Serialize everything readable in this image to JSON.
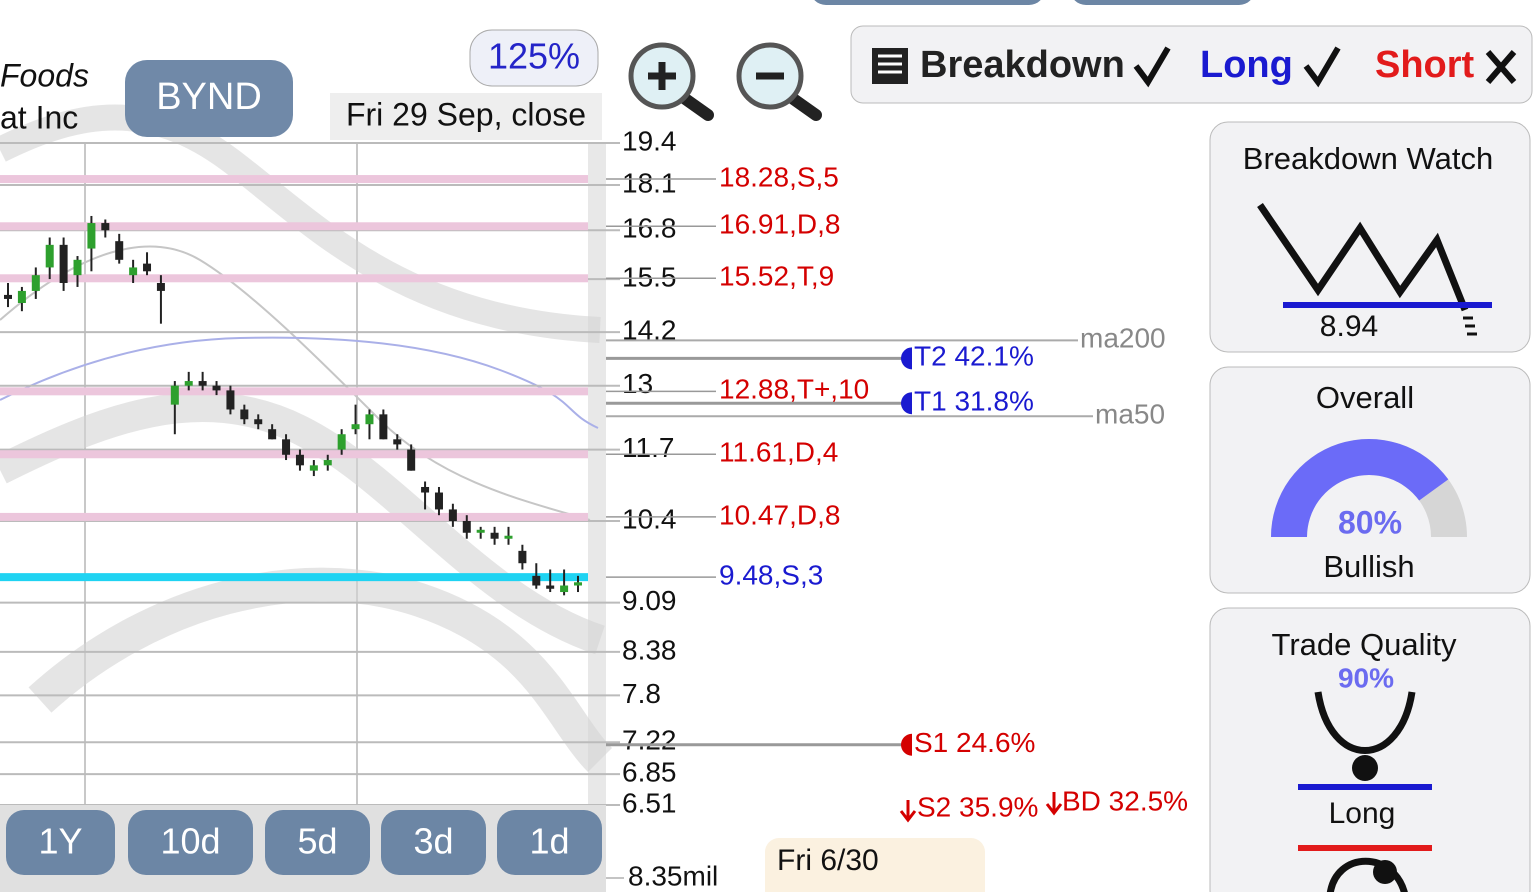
{
  "header": {
    "name_line1": "Foods",
    "name_line2": "at Inc",
    "ticker": "BYND",
    "zoom": "125%",
    "date": "Fri 29 Sep, close"
  },
  "toolbar": {
    "breakdown": "Breakdown",
    "long": "Long",
    "short": "Short"
  },
  "chart_data": {
    "type": "candlestick",
    "log": true,
    "ylim": [
      6.51,
      19.4
    ],
    "yticks": [
      19.4,
      18.1,
      16.8,
      15.5,
      14.2,
      13,
      11.7,
      10.4,
      9.09,
      8.38,
      7.8,
      7.22,
      6.85,
      6.51
    ],
    "levels": [
      {
        "value": 18.28,
        "label": "18.28,S,5",
        "color": "#d40000",
        "band": "#ecc6dc"
      },
      {
        "value": 16.91,
        "label": "16.91,D,8",
        "color": "#d40000",
        "band": "#ecc6dc"
      },
      {
        "value": 15.52,
        "label": "15.52,T,9",
        "color": "#d40000",
        "band": "#ecc6dc"
      },
      {
        "value": 12.88,
        "label": "12.88,T+,10",
        "color": "#d40000",
        "band": "#ecc6dc"
      },
      {
        "value": 11.61,
        "label": "11.61,D,4",
        "color": "#d40000",
        "band": "#ecc6dc"
      },
      {
        "value": 10.47,
        "label": "10.47,D,8",
        "color": "#d40000",
        "band": "#ecc6dc"
      },
      {
        "value": 9.48,
        "label": "9.48,S,3",
        "color": "#1a1ad0",
        "band": "#1fd3f2"
      }
    ],
    "targets": [
      {
        "value": 13.6,
        "label": "T2 42.1%",
        "color": "#1a1ad0"
      },
      {
        "value": 12.63,
        "label": "T1 31.8%",
        "color": "#1a1ad0"
      },
      {
        "value": 7.19,
        "label": "S1 24.6%",
        "color": "#d40000"
      }
    ],
    "averages": [
      {
        "value": 14.01,
        "label": "ma200",
        "end": 1078
      },
      {
        "value": 12.36,
        "label": "ma50",
        "end": 1093
      }
    ],
    "ohlc": [
      [
        15.1,
        15.4,
        14.8,
        15.0
      ],
      [
        14.9,
        15.3,
        14.7,
        15.2
      ],
      [
        15.2,
        15.8,
        15.0,
        15.6
      ],
      [
        15.8,
        16.6,
        15.5,
        16.4
      ],
      [
        16.4,
        16.6,
        15.2,
        15.4
      ],
      [
        15.6,
        16.1,
        15.3,
        16.0
      ],
      [
        16.3,
        17.2,
        15.7,
        17.0
      ],
      [
        17.0,
        17.1,
        16.6,
        16.8
      ],
      [
        16.5,
        16.7,
        15.9,
        16.0
      ],
      [
        15.6,
        16.0,
        15.4,
        15.8
      ],
      [
        15.9,
        16.2,
        15.6,
        15.7
      ],
      [
        15.4,
        15.6,
        14.4,
        15.2
      ],
      [
        12.6,
        13.1,
        12.0,
        13.0
      ],
      [
        13.0,
        13.3,
        12.9,
        13.1
      ],
      [
        13.1,
        13.3,
        12.9,
        13.0
      ],
      [
        13.0,
        13.1,
        12.8,
        12.9
      ],
      [
        12.9,
        13.0,
        12.4,
        12.5
      ],
      [
        12.5,
        12.6,
        12.2,
        12.3
      ],
      [
        12.3,
        12.4,
        12.1,
        12.2
      ],
      [
        12.1,
        12.2,
        11.9,
        11.9
      ],
      [
        11.9,
        12.0,
        11.5,
        11.6
      ],
      [
        11.6,
        11.7,
        11.3,
        11.4
      ],
      [
        11.3,
        11.5,
        11.2,
        11.4
      ],
      [
        11.4,
        11.6,
        11.3,
        11.5
      ],
      [
        11.7,
        12.1,
        11.6,
        12.0
      ],
      [
        12.1,
        12.6,
        12.0,
        12.2
      ],
      [
        12.2,
        12.5,
        11.9,
        12.4
      ],
      [
        12.4,
        12.5,
        11.9,
        11.9
      ],
      [
        11.9,
        12.0,
        11.7,
        11.8
      ],
      [
        11.7,
        11.8,
        11.3,
        11.3
      ],
      [
        11.0,
        11.1,
        10.6,
        10.9
      ],
      [
        10.9,
        11.0,
        10.5,
        10.6
      ],
      [
        10.6,
        10.7,
        10.3,
        10.4
      ],
      [
        10.4,
        10.5,
        10.1,
        10.2
      ],
      [
        10.2,
        10.3,
        10.1,
        10.25
      ],
      [
        10.2,
        10.3,
        10.0,
        10.1
      ],
      [
        10.1,
        10.3,
        10.0,
        10.15
      ],
      [
        9.9,
        10.0,
        9.6,
        9.7
      ],
      [
        9.5,
        9.7,
        9.3,
        9.35
      ],
      [
        9.35,
        9.6,
        9.25,
        9.3
      ],
      [
        9.25,
        9.6,
        9.2,
        9.35
      ],
      [
        9.35,
        9.5,
        9.25,
        9.4
      ]
    ],
    "up_color": "#2ea02e",
    "down_color": "#222222"
  },
  "lower_labels": {
    "s2": "S2 35.9%",
    "bd": "BD 32.5%",
    "volume": "8.35mil",
    "date_box": "Fri 6/30"
  },
  "ranges": [
    "1Y",
    "10d",
    "5d",
    "3d",
    "1d"
  ],
  "panels": {
    "breakdown_watch": {
      "title": "Breakdown Watch",
      "value": "8.94"
    },
    "overall": {
      "title": "Overall",
      "value": 80,
      "label": "80%",
      "status": "Bullish"
    },
    "trade_quality": {
      "title": "Trade Quality",
      "value": "90%",
      "status": "Long"
    }
  }
}
